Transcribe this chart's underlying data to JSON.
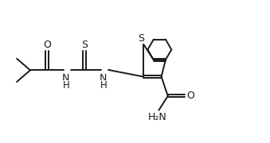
{
  "bg_color": "#ffffff",
  "line_color": "#1a1a1a",
  "line_width": 1.4,
  "font_size": 8.5,
  "figsize": [
    3.39,
    1.8
  ],
  "dpi": 100,
  "xlim": [
    0,
    10.2
  ],
  "ylim": [
    0,
    5.5
  ]
}
